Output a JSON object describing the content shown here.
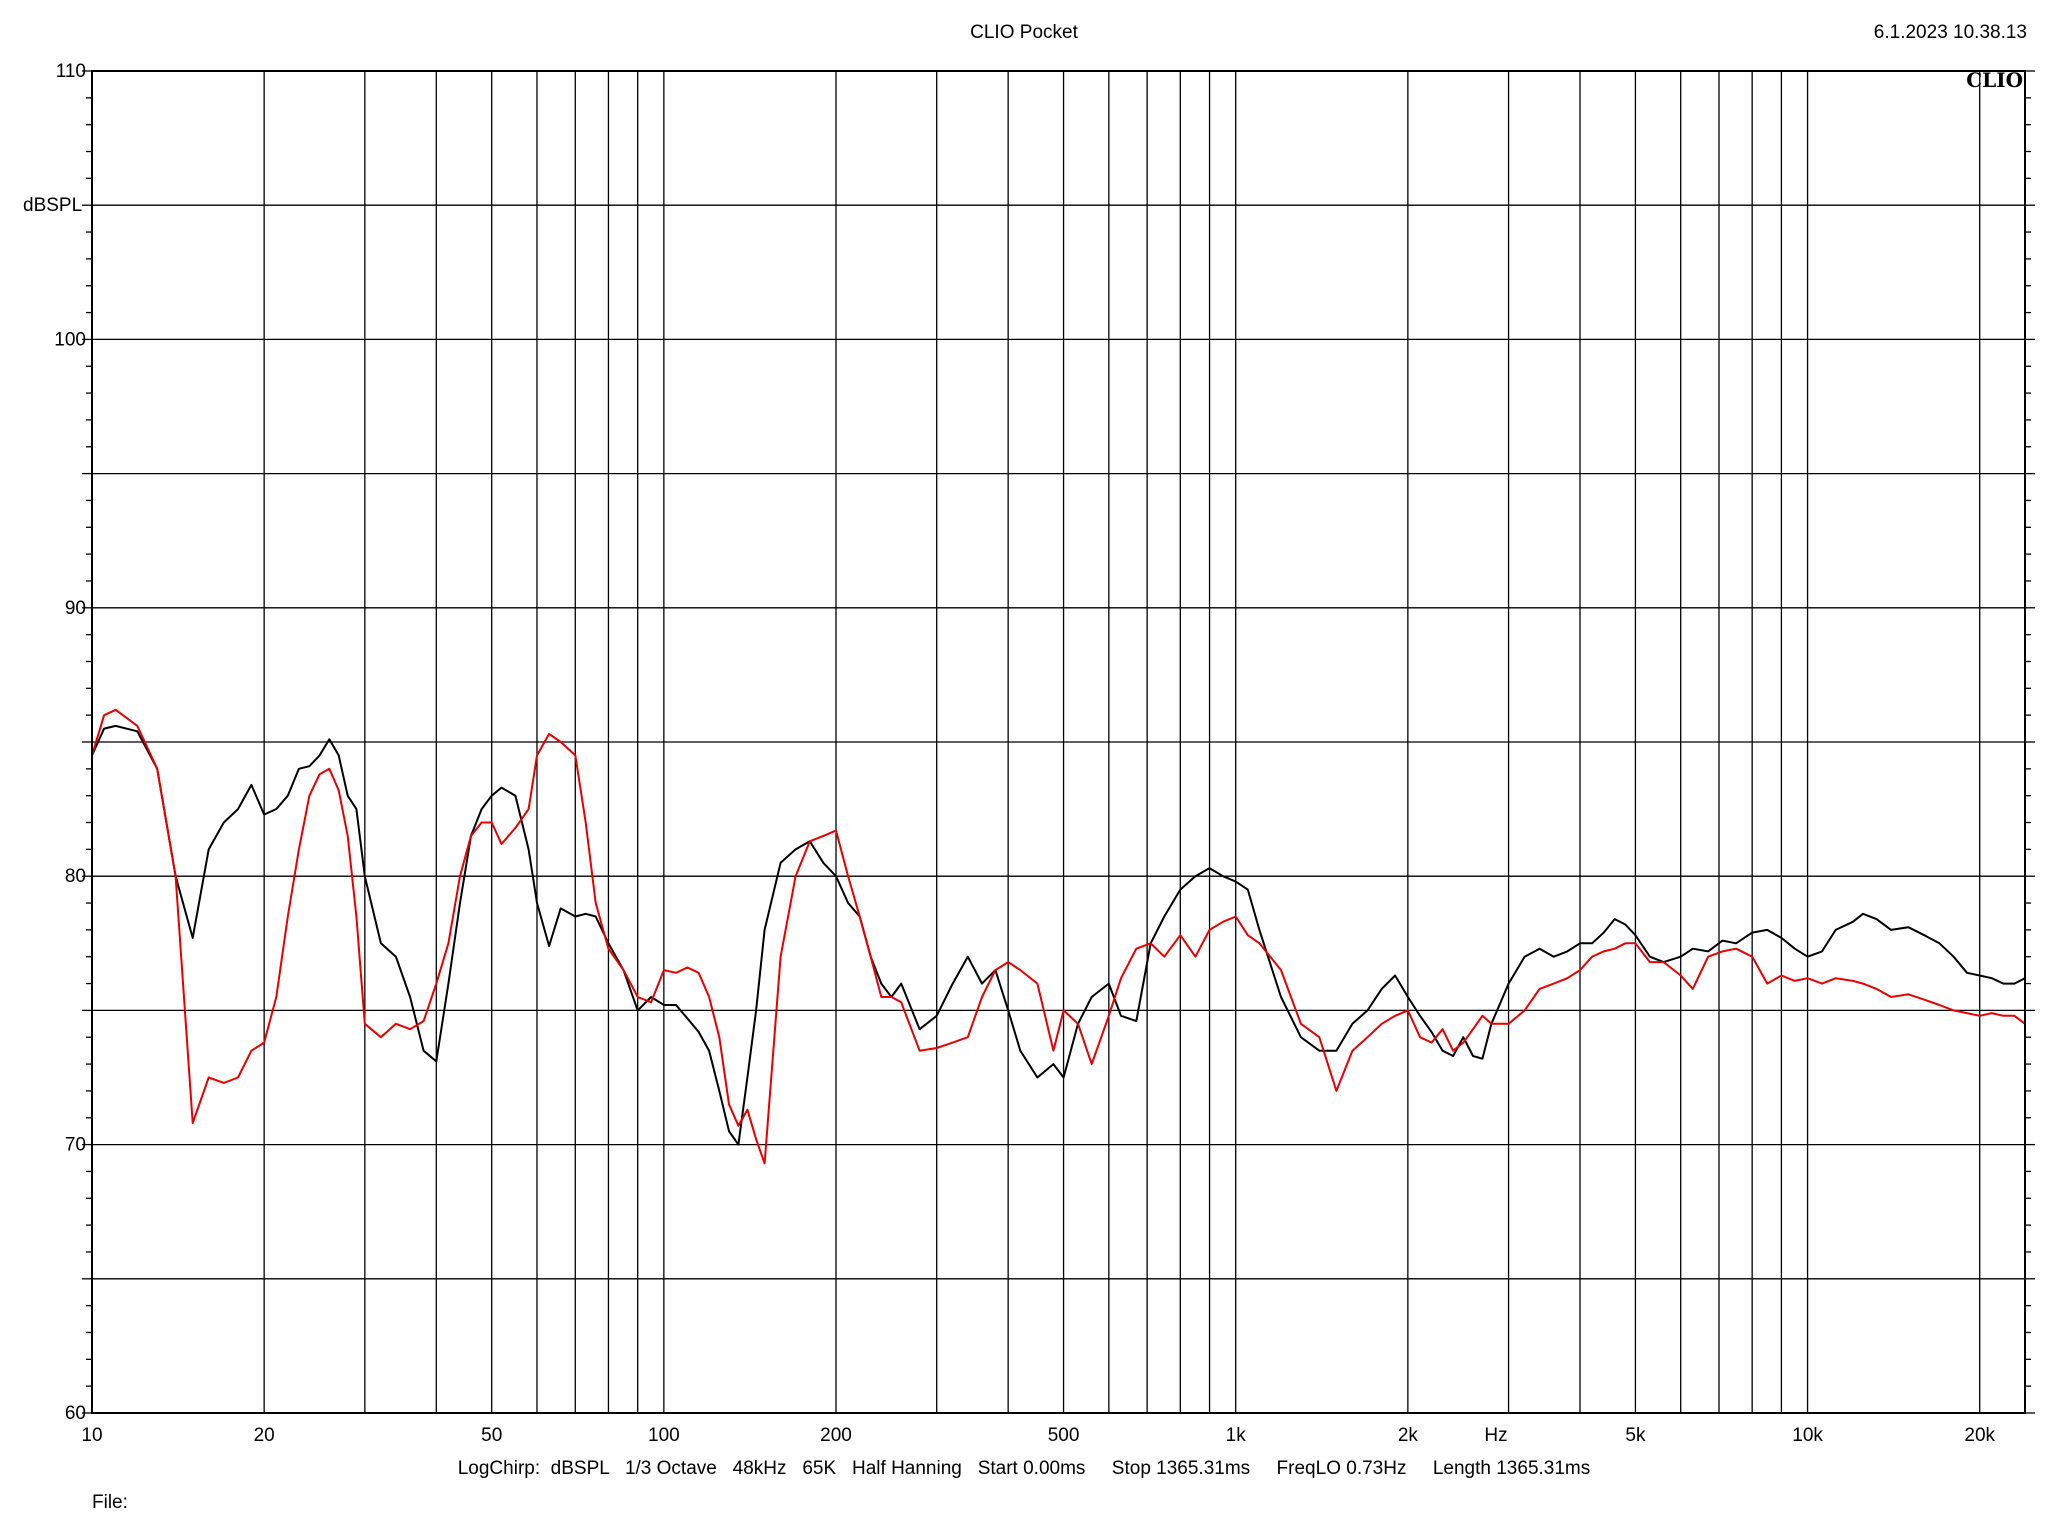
{
  "header": {
    "title": "CLIO Pocket",
    "timestamp": "6.1.2023 10.38.13",
    "logo": "CLIO"
  },
  "footer": {
    "settings": "LogChirp:  dBSPL   1/3 Octave   48kHz   65K   Half Hanning   Start 0.00ms     Stop 1365.31ms     FreqLO 0.73Hz     Length 1365.31ms",
    "file_label": "File:"
  },
  "chart_data": {
    "type": "line",
    "title": "CLIO Pocket",
    "xlabel": "Hz",
    "ylabel": "dBSPL",
    "xscale": "log",
    "xlim": [
      10,
      24000
    ],
    "ylim": [
      60,
      110
    ],
    "grid": true,
    "y_ticks": [
      {
        "value": 110,
        "label": "110"
      },
      {
        "value": 100,
        "label": "100"
      },
      {
        "value": 90,
        "label": "90"
      },
      {
        "value": 80,
        "label": "80"
      },
      {
        "value": 70,
        "label": "70"
      },
      {
        "value": 60,
        "label": "60"
      }
    ],
    "x_ticks": [
      {
        "value": 10,
        "label": "10"
      },
      {
        "value": 20,
        "label": "20"
      },
      {
        "value": 50,
        "label": "50"
      },
      {
        "value": 100,
        "label": "100"
      },
      {
        "value": 200,
        "label": "200"
      },
      {
        "value": 500,
        "label": "500"
      },
      {
        "value": 1000,
        "label": "1k"
      },
      {
        "value": 2000,
        "label": "2k"
      },
      {
        "value": 5000,
        "label": "5k"
      },
      {
        "value": 10000,
        "label": "10k"
      },
      {
        "value": 20000,
        "label": "20k"
      }
    ],
    "series": [
      {
        "color": "#000000",
        "x": [
          10,
          10.5,
          11,
          12,
          13,
          14,
          15,
          16,
          17,
          18,
          19,
          20,
          21,
          22,
          23,
          24,
          25,
          26,
          27,
          28,
          29,
          30,
          32,
          34,
          36,
          38,
          40,
          42,
          44,
          46,
          48,
          50,
          52,
          55,
          58,
          60,
          63,
          66,
          70,
          73,
          76,
          80,
          85,
          90,
          95,
          100,
          105,
          110,
          115,
          120,
          125,
          130,
          135,
          140,
          145,
          150,
          160,
          170,
          180,
          190,
          200,
          210,
          220,
          230,
          240,
          250,
          260,
          280,
          300,
          320,
          340,
          360,
          380,
          400,
          420,
          450,
          480,
          500,
          530,
          560,
          600,
          630,
          670,
          710,
          750,
          800,
          850,
          900,
          950,
          1000,
          1050,
          1100,
          1200,
          1300,
          1400,
          1500,
          1600,
          1700,
          1800,
          1900,
          2000,
          2100,
          2200,
          2300,
          2400,
          2500,
          2600,
          2700,
          2800,
          3000,
          3200,
          3400,
          3600,
          3800,
          4000,
          4200,
          4400,
          4600,
          4800,
          5000,
          5300,
          5600,
          6000,
          6300,
          6700,
          7100,
          7500,
          8000,
          8500,
          9000,
          9500,
          10000,
          10600,
          11200,
          12000,
          12500,
          13200,
          14000,
          15000,
          16000,
          17000,
          18000,
          19000,
          20000,
          21000,
          22000,
          23000,
          24000
        ],
        "y": [
          84.5,
          85.5,
          85.6,
          85.4,
          84.0,
          80.0,
          77.7,
          81.0,
          82.0,
          82.5,
          83.4,
          82.3,
          82.5,
          83.0,
          84.0,
          84.1,
          84.5,
          85.1,
          84.5,
          83.0,
          82.5,
          80.0,
          77.5,
          77.0,
          75.5,
          73.5,
          73.1,
          76.0,
          79.0,
          81.5,
          82.5,
          83.0,
          83.3,
          83.0,
          81.0,
          79.0,
          77.4,
          78.8,
          78.5,
          78.6,
          78.5,
          77.5,
          76.5,
          75.0,
          75.5,
          75.2,
          75.2,
          74.7,
          74.2,
          73.5,
          72.0,
          70.5,
          70.0,
          72.5,
          75.0,
          78.0,
          80.5,
          81.0,
          81.3,
          80.5,
          80.0,
          79.0,
          78.5,
          77.0,
          76.0,
          75.5,
          76.0,
          74.3,
          74.8,
          76.0,
          77.0,
          76.0,
          76.5,
          75.0,
          73.5,
          72.5,
          73.0,
          72.5,
          74.5,
          75.5,
          76.0,
          74.8,
          74.6,
          77.5,
          78.5,
          79.5,
          80.0,
          80.3,
          80.0,
          79.8,
          79.5,
          78.0,
          75.5,
          74.0,
          73.5,
          73.5,
          74.5,
          75.0,
          75.8,
          76.3,
          75.5,
          74.8,
          74.2,
          73.5,
          73.3,
          74.0,
          73.3,
          73.2,
          74.5,
          76.0,
          77.0,
          77.3,
          77.0,
          77.2,
          77.5,
          77.5,
          77.9,
          78.4,
          78.2,
          77.8,
          77.0,
          76.8,
          77.0,
          77.3,
          77.2,
          77.6,
          77.5,
          77.9,
          78.0,
          77.7,
          77.3,
          77.0,
          77.2,
          78.0,
          78.3,
          78.6,
          78.4,
          78.0,
          78.1,
          77.8,
          77.5,
          77.0,
          76.4,
          76.3,
          76.2,
          76.0,
          76.0,
          76.2
        ]
      },
      {
        "color": "#e60000",
        "x": [
          10,
          10.5,
          11,
          12,
          13,
          14,
          15,
          16,
          17,
          18,
          19,
          20,
          21,
          22,
          23,
          24,
          25,
          26,
          27,
          28,
          29,
          30,
          32,
          34,
          36,
          38,
          40,
          42,
          44,
          46,
          48,
          50,
          52,
          55,
          58,
          60,
          63,
          66,
          70,
          73,
          76,
          80,
          85,
          90,
          95,
          100,
          105,
          110,
          115,
          120,
          125,
          130,
          135,
          140,
          145,
          150,
          160,
          170,
          180,
          190,
          200,
          210,
          220,
          230,
          240,
          250,
          260,
          280,
          300,
          320,
          340,
          360,
          380,
          400,
          420,
          450,
          480,
          500,
          530,
          560,
          600,
          630,
          670,
          710,
          750,
          800,
          850,
          900,
          950,
          1000,
          1050,
          1100,
          1200,
          1300,
          1400,
          1500,
          1600,
          1700,
          1800,
          1900,
          2000,
          2100,
          2200,
          2300,
          2400,
          2500,
          2600,
          2700,
          2800,
          3000,
          3200,
          3400,
          3600,
          3800,
          4000,
          4200,
          4400,
          4600,
          4800,
          5000,
          5300,
          5600,
          6000,
          6300,
          6700,
          7100,
          7500,
          8000,
          8500,
          9000,
          9500,
          10000,
          10600,
          11200,
          12000,
          12500,
          13200,
          14000,
          15000,
          16000,
          17000,
          18000,
          19000,
          20000,
          21000,
          22000,
          23000,
          24000
        ],
        "y": [
          84.5,
          86.0,
          86.2,
          85.6,
          84.0,
          80.0,
          70.8,
          72.5,
          72.3,
          72.5,
          73.5,
          73.8,
          75.5,
          78.5,
          81.0,
          83.0,
          83.8,
          84.0,
          83.2,
          81.5,
          78.5,
          74.5,
          74.0,
          74.5,
          74.3,
          74.6,
          76.0,
          77.5,
          80.0,
          81.5,
          82.0,
          82.0,
          81.2,
          81.8,
          82.5,
          84.5,
          85.3,
          85.0,
          84.5,
          82.0,
          79.0,
          77.3,
          76.5,
          75.5,
          75.3,
          76.5,
          76.4,
          76.6,
          76.4,
          75.5,
          74.0,
          71.5,
          70.7,
          71.3,
          70.2,
          69.3,
          77.0,
          80.0,
          81.3,
          81.5,
          81.7,
          80.0,
          78.5,
          77.0,
          75.5,
          75.5,
          75.3,
          73.5,
          73.6,
          73.8,
          74.0,
          75.5,
          76.5,
          76.8,
          76.5,
          76.0,
          73.5,
          75.0,
          74.5,
          73.0,
          74.8,
          76.2,
          77.3,
          77.5,
          77.0,
          77.8,
          77.0,
          78.0,
          78.3,
          78.5,
          77.8,
          77.5,
          76.5,
          74.5,
          74.0,
          72.0,
          73.5,
          74.0,
          74.5,
          74.8,
          75.0,
          74.0,
          73.8,
          74.3,
          73.5,
          73.8,
          74.3,
          74.8,
          74.5,
          74.5,
          75.0,
          75.8,
          76.0,
          76.2,
          76.5,
          77.0,
          77.2,
          77.3,
          77.5,
          77.5,
          76.8,
          76.8,
          76.3,
          75.8,
          77.0,
          77.2,
          77.3,
          77.0,
          76.0,
          76.3,
          76.1,
          76.2,
          76.0,
          76.2,
          76.1,
          76.0,
          75.8,
          75.5,
          75.6,
          75.4,
          75.2,
          75.0,
          74.9,
          74.8,
          74.9,
          74.8,
          74.8,
          74.5
        ]
      }
    ]
  }
}
